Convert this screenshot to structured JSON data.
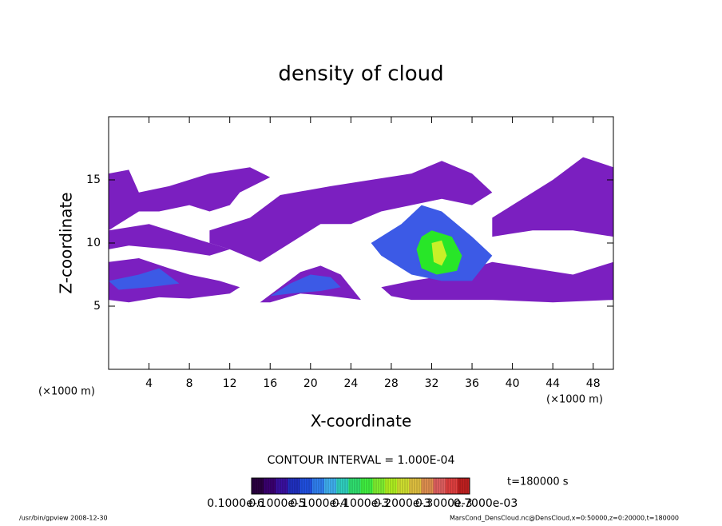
{
  "chart_data": {
    "type": "contour",
    "title": "density of cloud",
    "xlabel": "X-coordinate",
    "ylabel": "Z-coordinate",
    "x_unit": "(×1000 m)",
    "y_unit": "(×1000 m)",
    "xlim": [
      0,
      50
    ],
    "ylim": [
      0,
      20
    ],
    "xticks": [
      4,
      8,
      12,
      16,
      20,
      24,
      28,
      32,
      36,
      40,
      44,
      48
    ],
    "yticks": [
      5,
      10,
      15
    ],
    "contour_interval": "CONTOUR INTERVAL = 1.000E-04",
    "time_label": "t=180000 s",
    "colorbar": {
      "colors": [
        "#2a0040",
        "#3a0070",
        "#3a10a0",
        "#2030c0",
        "#2050e0",
        "#3080f0",
        "#40b0f0",
        "#30d0c0",
        "#30e070",
        "#40f040",
        "#80f030",
        "#b0f020",
        "#d0e030",
        "#e0c040",
        "#e09050",
        "#e06060",
        "#e04040",
        "#c02020"
      ],
      "labels": [
        "0.1000e-6",
        "0.1000e-5",
        "0.1000e-4",
        "0.1000e-3",
        "0.2000e-3",
        "0.3000e-3",
        "0.7000e-03"
      ]
    },
    "regions": [
      {
        "color": "#7b1fc0",
        "x": [
          0,
          2,
          3,
          6,
          10,
          14,
          16,
          13,
          12,
          10,
          8,
          5,
          3,
          1,
          0
        ],
        "y": [
          15.5,
          15.8,
          14,
          14.5,
          15.5,
          16,
          15.2,
          14,
          13,
          12.5,
          13,
          12.5,
          12.5,
          11.5,
          11
        ]
      },
      {
        "color": "#7b1fc0",
        "x": [
          0,
          4,
          8,
          12,
          10,
          6,
          2,
          0
        ],
        "y": [
          11,
          11.5,
          10.5,
          9.5,
          9,
          9.5,
          9.8,
          9.5
        ]
      },
      {
        "color": "#7b1fc0",
        "x": [
          10,
          14,
          17,
          22,
          26,
          30,
          33,
          36,
          38,
          36,
          33,
          30,
          27,
          24,
          21,
          18,
          15,
          12,
          10
        ],
        "y": [
          11,
          12,
          13.8,
          14.5,
          15,
          15.5,
          16.5,
          15.5,
          14,
          13,
          13.5,
          13,
          12.5,
          11.5,
          11.5,
          10,
          8.5,
          9.5,
          10
        ]
      },
      {
        "color": "#7b1fc0",
        "x": [
          38,
          41,
          44,
          47,
          50,
          50,
          46,
          42,
          38
        ],
        "y": [
          12,
          13.5,
          15,
          16.8,
          16,
          10.5,
          11,
          11,
          10.5
        ]
      },
      {
        "color": "#7b1fc0",
        "x": [
          0,
          3,
          6,
          8,
          11,
          13,
          12,
          8,
          5,
          2,
          0
        ],
        "y": [
          8.5,
          8.8,
          8,
          7.5,
          7,
          6.5,
          6,
          5.6,
          5.7,
          5.3,
          5.5
        ]
      },
      {
        "color": "#7b1fc0",
        "x": [
          27,
          30,
          34,
          38,
          42,
          46,
          50,
          50,
          44,
          38,
          30,
          28
        ],
        "y": [
          6.5,
          7,
          7.5,
          8.5,
          8,
          7.5,
          8.5,
          5.5,
          5.3,
          5.5,
          5.5,
          5.8
        ]
      },
      {
        "color": "#7b1fc0",
        "x": [
          15,
          17,
          19,
          21,
          23,
          25,
          22,
          19,
          16
        ],
        "y": [
          5.3,
          6.5,
          7.7,
          8.2,
          7.5,
          5.5,
          5.8,
          6,
          5.3
        ]
      },
      {
        "color": "#3c5ae6",
        "x": [
          16,
          18,
          20,
          22,
          23,
          21,
          18
        ],
        "y": [
          5.8,
          6.8,
          7.5,
          7.3,
          6.5,
          6.2,
          6
        ]
      },
      {
        "color": "#3c5ae6",
        "x": [
          0,
          3,
          5,
          7,
          4,
          1
        ],
        "y": [
          7,
          7.5,
          8,
          6.8,
          6.5,
          6.3
        ]
      },
      {
        "color": "#3c5ae6",
        "x": [
          26,
          29,
          31,
          33,
          36,
          38,
          36,
          33,
          30,
          27
        ],
        "y": [
          10,
          11.5,
          13,
          12.5,
          10.5,
          9,
          7,
          7,
          7.5,
          9
        ]
      },
      {
        "color": "#28e628",
        "x": [
          31,
          32,
          34,
          35,
          34.5,
          32.5,
          31,
          30.5
        ],
        "y": [
          10.5,
          11,
          10.5,
          9,
          7.8,
          7.5,
          8,
          9.5
        ]
      },
      {
        "color": "#c8f028",
        "x": [
          32,
          33,
          33.5,
          33,
          32.2
        ],
        "y": [
          10,
          10.2,
          9,
          8.2,
          8.5
        ]
      }
    ]
  },
  "footer": {
    "left": "/usr/bin/gpview  2008-12-30",
    "right": "MarsCond_DensCloud.nc@DensCloud,x=0:50000,z=0:20000,t=180000"
  }
}
